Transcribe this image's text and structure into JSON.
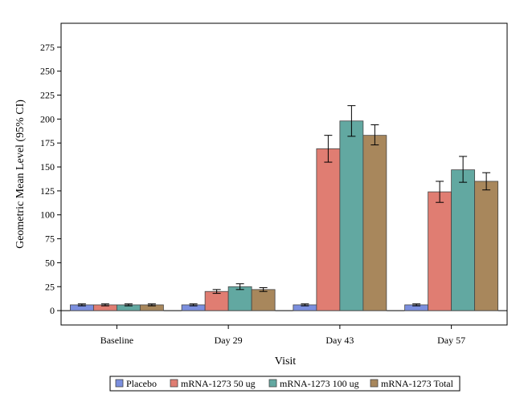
{
  "chart_data": {
    "type": "bar",
    "title": "",
    "xlabel": "Visit",
    "ylabel": "Geometric Mean Level (95% CI)",
    "ylim": [
      -15,
      300
    ],
    "yticks": [
      0,
      25,
      50,
      75,
      100,
      125,
      150,
      175,
      200,
      225,
      250,
      275
    ],
    "categories": [
      "Baseline",
      "Day 29",
      "Day 43",
      "Day 57"
    ],
    "grid": false,
    "legend_position": "bottom",
    "series": [
      {
        "name": "Placebo",
        "color": "#7b8fdf",
        "values": [
          6,
          6,
          6,
          6
        ],
        "ci_lower": [
          5,
          5,
          5,
          5
        ],
        "ci_upper": [
          7,
          7,
          7,
          7
        ]
      },
      {
        "name": "mRNA-1273 50 ug",
        "color": "#e07d72",
        "values": [
          6,
          20,
          169,
          124
        ],
        "ci_lower": [
          5,
          18,
          155,
          113
        ],
        "ci_upper": [
          7,
          22,
          183,
          135
        ]
      },
      {
        "name": "mRNA-1273 100 ug",
        "color": "#62a8a1",
        "values": [
          6,
          25,
          198,
          147
        ],
        "ci_lower": [
          5,
          22,
          182,
          134
        ],
        "ci_upper": [
          7,
          28,
          214,
          161
        ]
      },
      {
        "name": "mRNA-1273 Total",
        "color": "#a8875c",
        "values": [
          6,
          22,
          183,
          135
        ],
        "ci_lower": [
          5,
          20,
          173,
          126
        ],
        "ci_upper": [
          7,
          24,
          194,
          144
        ]
      }
    ]
  }
}
